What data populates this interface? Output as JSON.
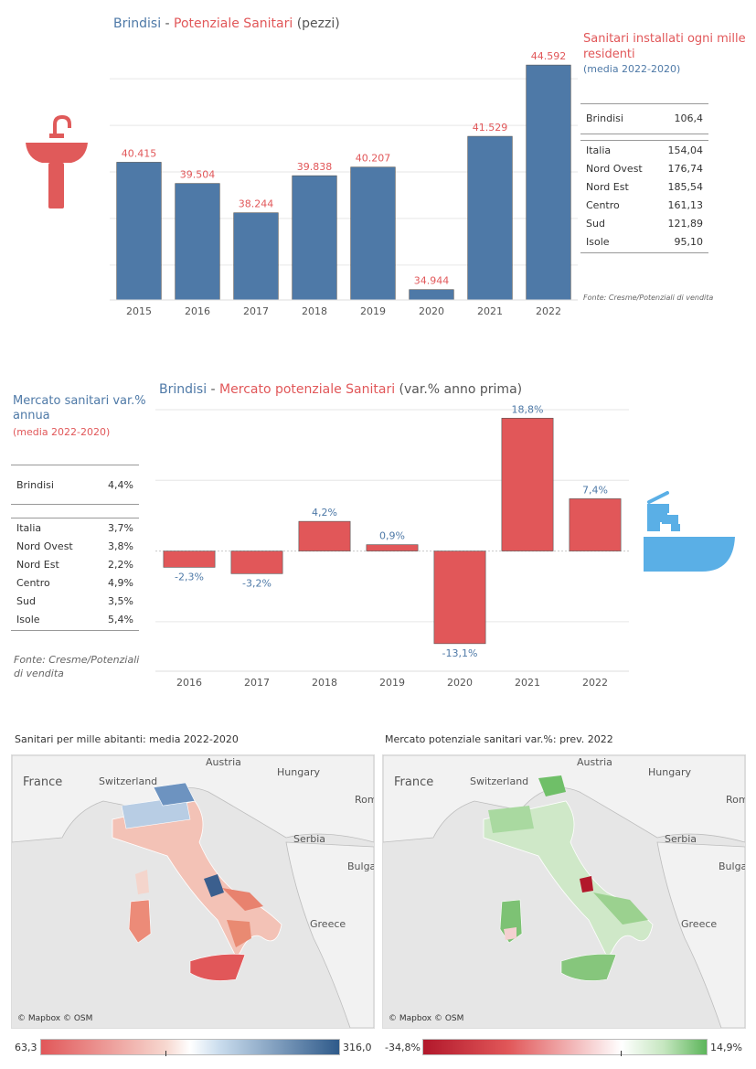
{
  "colors": {
    "bar_blue": "#4e79a7",
    "bar_red": "#e15759",
    "blue": "#4e79a7",
    "red": "#e15759",
    "sink": "#e05a5a",
    "tap": "#5aafe6"
  },
  "chart1": {
    "title_place": "Brindisi",
    "title_sep": " - ",
    "title_metric": "Potenziale Sanitari",
    "title_unit": " (pezzi)"
  },
  "side1": {
    "heading": "Sanitari installati ogni mille residenti",
    "sub": "(media 2022-2020)",
    "local": {
      "name": "Brindisi",
      "value": "106,4"
    },
    "rows": [
      {
        "name": "Italia",
        "value": "154,04"
      },
      {
        "name": "Nord Ovest",
        "value": "176,74"
      },
      {
        "name": "Nord Est",
        "value": "185,54"
      },
      {
        "name": "Centro",
        "value": "161,13"
      },
      {
        "name": "Sud",
        "value": "121,89"
      },
      {
        "name": "Isole",
        "value": "95,10"
      }
    ],
    "source": "Fonte: Cresme/Potenziali di vendita"
  },
  "chart2": {
    "title_place": "Brindisi",
    "title_sep": " - ",
    "title_metric": "Mercato potenziale Sanitari",
    "title_unit": " (var.% anno prima)"
  },
  "side2": {
    "heading": "Mercato sanitari var.% annua",
    "sub": "(media 2022-2020)",
    "local": {
      "name": "Brindisi",
      "value": "4,4%"
    },
    "rows": [
      {
        "name": "Italia",
        "value": "3,7%"
      },
      {
        "name": "Nord Ovest",
        "value": "3,8%"
      },
      {
        "name": "Nord Est",
        "value": "2,2%"
      },
      {
        "name": "Centro",
        "value": "4,9%"
      },
      {
        "name": "Sud",
        "value": "3,5%"
      },
      {
        "name": "Isole",
        "value": "5,4%"
      }
    ],
    "source": "Fonte: Cresme/Potenziali di vendita"
  },
  "maps": {
    "left": {
      "title": "Sanitari per mille abitanti: media 2022-2020",
      "attribution": "© Mapbox © OSM",
      "min": "63,3",
      "max": "316,0"
    },
    "right": {
      "title": "Mercato potenziale sanitari var.%: prev. 2022",
      "attribution": "© Mapbox © OSM",
      "min": "-34,8%",
      "max": "14,9%"
    },
    "labels": [
      "France",
      "Switzerland",
      "Austria",
      "Hungary",
      "Rom",
      "Serbia",
      "Bulga",
      "Greece"
    ]
  },
  "chart_data": [
    {
      "type": "bar",
      "categories": [
        "2015",
        "2016",
        "2017",
        "2018",
        "2019",
        "2020",
        "2021",
        "2022"
      ],
      "values": [
        40415,
        39504,
        38244,
        39838,
        40207,
        34944,
        41529,
        44592
      ],
      "labels": [
        "40.415",
        "39.504",
        "38.244",
        "39.838",
        "40.207",
        "34.944",
        "41.529",
        "44.592"
      ],
      "ylim": [
        34500,
        45500
      ]
    },
    {
      "type": "bar",
      "categories": [
        "2016",
        "2017",
        "2018",
        "2019",
        "2020",
        "2021",
        "2022"
      ],
      "values": [
        -2.3,
        -3.2,
        4.2,
        0.9,
        -13.1,
        18.8,
        7.4
      ],
      "labels": [
        "-2,3%",
        "-3,2%",
        "4,2%",
        "0,9%",
        "-13,1%",
        "18,8%",
        "7,4%"
      ],
      "ylim": [
        -17,
        20
      ]
    }
  ]
}
